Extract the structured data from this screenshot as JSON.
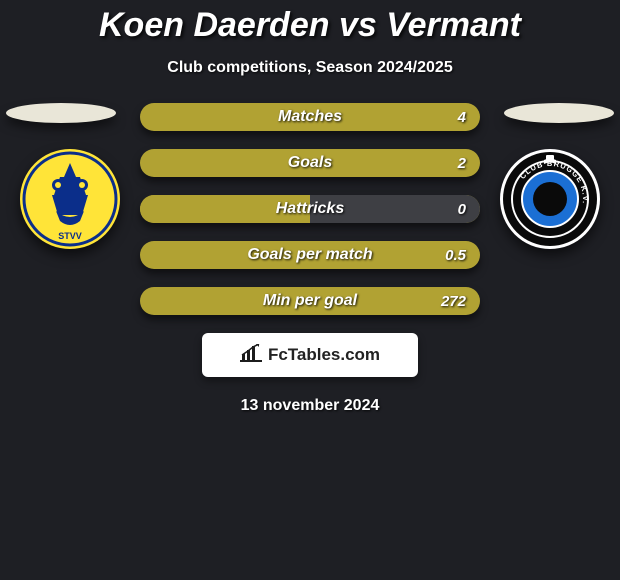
{
  "title": "Koen Daerden vs Vermant",
  "subtitle": "Club competitions, Season 2024/2025",
  "date": "13 november 2024",
  "colors": {
    "background": "#1e1f24",
    "left_team": "#b1a233",
    "right_team": "#3e3f44",
    "platform": "#e9e6d8",
    "logo_box_bg": "#ffffff",
    "text": "#ffffff"
  },
  "left_crest": {
    "bg": "#ffe438",
    "ring": "#0b2e8a",
    "text": "STVV"
  },
  "right_crest": {
    "bg": "#0a0a0a",
    "ring": "#1b6fd4",
    "ring2": "#ffffff",
    "text": "CLUB BRUGGE"
  },
  "rows": [
    {
      "label": "Matches",
      "left_val": "",
      "right_val": "4",
      "left_pct": 0,
      "right_pct": 100
    },
    {
      "label": "Goals",
      "left_val": "",
      "right_val": "2",
      "left_pct": 0,
      "right_pct": 100
    },
    {
      "label": "Hattricks",
      "left_val": "",
      "right_val": "0",
      "left_pct": 50,
      "right_pct": 50
    },
    {
      "label": "Goals per match",
      "left_val": "",
      "right_val": "0.5",
      "left_pct": 0,
      "right_pct": 100
    },
    {
      "label": "Min per goal",
      "left_val": "",
      "right_val": "272",
      "left_pct": 0,
      "right_pct": 100
    }
  ],
  "logo": {
    "text": "FcTables.com"
  }
}
